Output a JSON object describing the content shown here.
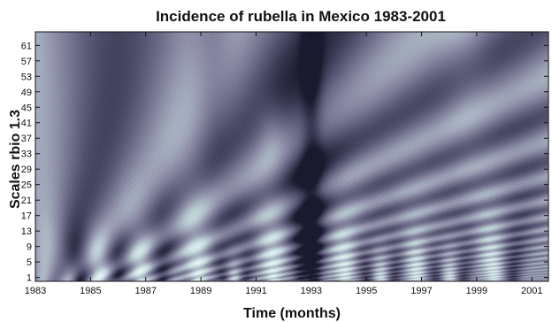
{
  "chart_data": {
    "type": "heatmap",
    "title": "Incidence of rubella in Mexico 1983-2001",
    "xlabel": "Time (months)",
    "ylabel": "Scales rbio 1.3",
    "x_ticks": [
      "1983",
      "1985",
      "1987",
      "1989",
      "1991",
      "1993",
      "1995",
      "1997",
      "1999",
      "2001"
    ],
    "x_tick_values": [
      1983,
      1985,
      1987,
      1989,
      1991,
      1993,
      1995,
      1997,
      1999,
      2001
    ],
    "xlim": [
      1983,
      2001.6
    ],
    "y_ticks": [
      "1",
      "5",
      "9",
      "13",
      "17",
      "21",
      "25",
      "29",
      "33",
      "37",
      "41",
      "45",
      "49",
      "53",
      "57",
      "61"
    ],
    "y_tick_values": [
      1,
      5,
      9,
      13,
      17,
      21,
      25,
      29,
      33,
      37,
      41,
      45,
      49,
      53,
      57,
      61
    ],
    "ylim": [
      0,
      64.5
    ],
    "colormap": [
      "#1a1a2e",
      "#555573",
      "#8c8ca6",
      "#bfd4d8",
      "#f2fffd"
    ],
    "grid": false,
    "legend": "none"
  }
}
